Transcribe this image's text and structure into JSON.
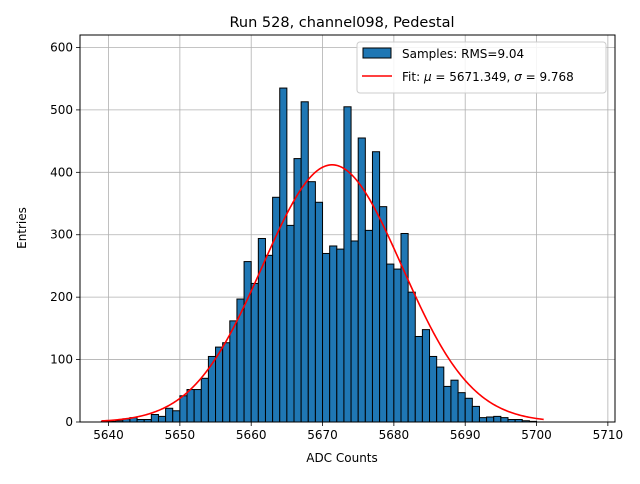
{
  "chart_data": {
    "type": "bar",
    "title": "Run 528, channel098, Pedestal",
    "xlabel": "ADC Counts",
    "ylabel": "Entries",
    "xlim": [
      5636,
      5711
    ],
    "ylim": [
      0,
      620
    ],
    "grid": true,
    "legend_position": "top-right",
    "xticks": [
      5640,
      5650,
      5660,
      5670,
      5680,
      5690,
      5700,
      5710
    ],
    "yticks": [
      0,
      100,
      200,
      300,
      400,
      500,
      600
    ],
    "histogram": {
      "name": "Samples: RMS=9.04",
      "color": "#1f77b4",
      "edgecolor": "#000000",
      "bin_start": 5639.0,
      "bin_width": 1.0,
      "counts": [
        1,
        1,
        2,
        5,
        7,
        4,
        4,
        12,
        9,
        22,
        18,
        42,
        52,
        52,
        70,
        105,
        120,
        127,
        162,
        197,
        257,
        222,
        294,
        267,
        360,
        535,
        315,
        422,
        513,
        385,
        352,
        270,
        282,
        277,
        505,
        290,
        455,
        307,
        433,
        345,
        253,
        245,
        302,
        208,
        137,
        148,
        105,
        88,
        57,
        67,
        47,
        38,
        25,
        7,
        8,
        9,
        7,
        4,
        4,
        2,
        1
      ]
    },
    "fit": {
      "name": "Fit: μ = 5671.349, σ = 9.768",
      "label_parts": {
        "prefix": "Fit: ",
        "mu_sym": "μ",
        "mid": " = 5671.349, ",
        "sigma_sym": "σ",
        "suffix": " = 9.768"
      },
      "color": "#ff0000",
      "mu": 5671.349,
      "sigma": 9.768,
      "amplitude": 412,
      "x_range": [
        5639,
        5701
      ]
    }
  }
}
